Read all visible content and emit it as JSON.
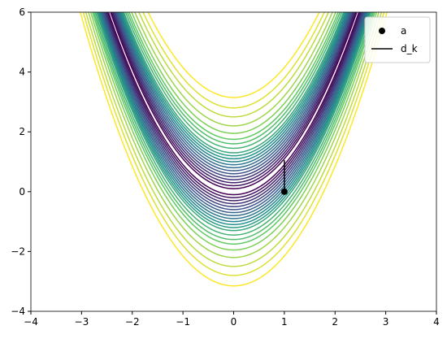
{
  "chart_data": {
    "type": "contour",
    "colormap": "viridis",
    "contour_offsets": [
      0.1,
      0.2,
      0.3,
      0.4,
      0.5,
      0.6,
      0.7,
      0.8,
      0.9,
      1.0,
      1.1,
      1.2,
      1.3,
      1.45,
      1.6,
      1.75,
      1.95,
      2.2,
      2.5,
      2.8,
      3.15
    ],
    "series": [
      {
        "name": "a",
        "type": "scatter",
        "color": "#000000",
        "x": [
          1
        ],
        "values": [
          0
        ]
      },
      {
        "name": "d_k",
        "type": "line",
        "color": "#000000",
        "x": [
          1,
          1
        ],
        "values": [
          0,
          1.05
        ]
      }
    ],
    "xlim": [
      -4,
      4
    ],
    "ylim": [
      -4,
      6
    ],
    "xticks": [
      {
        "value": -4,
        "label": "−4"
      },
      {
        "value": -3,
        "label": "−3"
      },
      {
        "value": -2,
        "label": "−2"
      },
      {
        "value": -1,
        "label": "−1"
      },
      0,
      1,
      2,
      3,
      4
    ],
    "yticks": [
      {
        "value": -4,
        "label": "−4"
      },
      {
        "value": -2,
        "label": "−2"
      },
      0,
      2,
      4,
      6
    ],
    "legend": "upper right"
  }
}
